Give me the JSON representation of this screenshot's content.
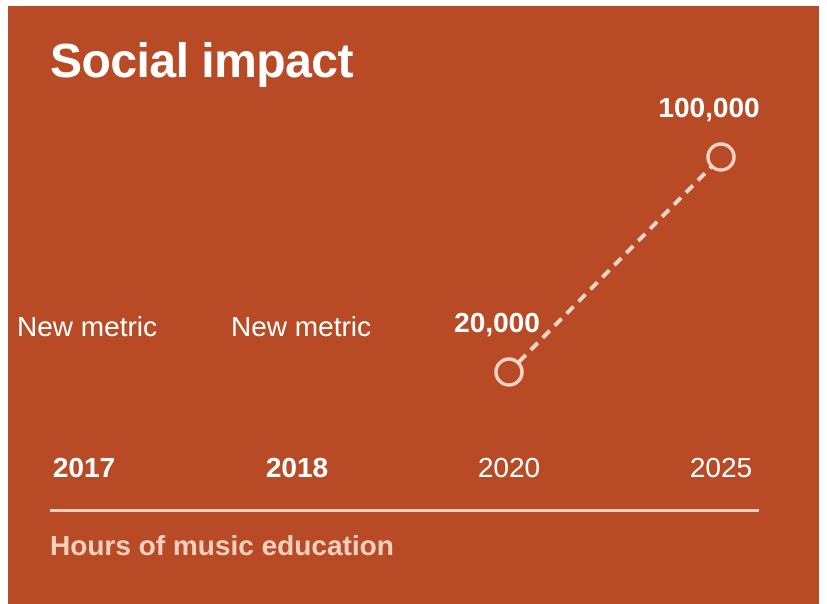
{
  "title": "Social impact",
  "placeholder_label": "New metric",
  "colors": {
    "background": "#b94a26",
    "marker_stroke": "#f6d4c8",
    "caption": "#f3cfc0",
    "text": "#ffffff"
  },
  "chart_data": {
    "type": "line",
    "categories": [
      "2017",
      "2018",
      "2020",
      "2025"
    ],
    "bold_categories": [
      "2017",
      "2018"
    ],
    "values": [
      null,
      null,
      20000,
      100000
    ],
    "value_labels": [
      "New metric",
      "New metric",
      "20,000",
      "100,000"
    ],
    "line_style": "dashed",
    "markers": "hollow-circle",
    "caption": "Hours of music education"
  }
}
